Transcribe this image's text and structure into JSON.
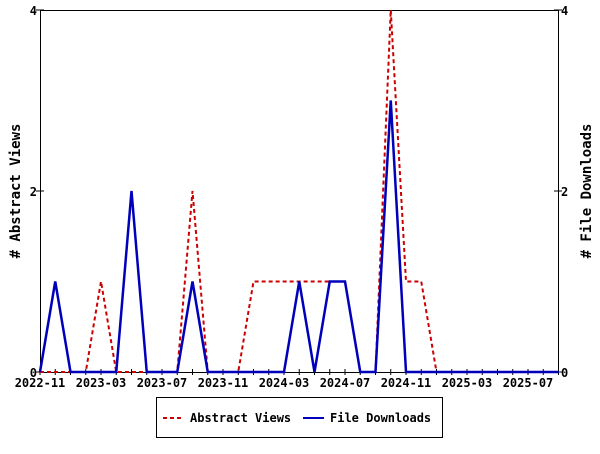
{
  "chart_data": {
    "type": "line",
    "title": "",
    "xlabel": "",
    "ylabel": "# Abstract Views",
    "y2label": "# File Downloads",
    "ylim": [
      0,
      4
    ],
    "y2lim": [
      0,
      4
    ],
    "yticks": [
      "0",
      "2",
      "4"
    ],
    "y2ticks": [
      "0",
      "2",
      "4"
    ],
    "x": [
      "2022-11",
      "2022-12",
      "2023-01",
      "2023-02",
      "2023-03",
      "2023-04",
      "2023-05",
      "2023-06",
      "2023-07",
      "2023-08",
      "2023-09",
      "2023-10",
      "2023-11",
      "2023-12",
      "2024-01",
      "2024-02",
      "2024-03",
      "2024-04",
      "2024-05",
      "2024-06",
      "2024-07",
      "2024-08",
      "2024-09",
      "2024-10",
      "2024-11",
      "2024-12",
      "2025-01",
      "2025-02",
      "2025-03",
      "2025-04",
      "2025-05",
      "2025-06",
      "2025-07",
      "2025-08",
      "2025-09"
    ],
    "xticks": [
      "2022-11",
      "2023-03",
      "2023-07",
      "2023-11",
      "2024-03",
      "2024-07",
      "2024-11",
      "2025-03",
      "2025-07"
    ],
    "legend_position": "bottom",
    "series": [
      {
        "name": "Abstract Views",
        "color": "#cc0000",
        "dash": true,
        "axis": "left",
        "values": [
          0,
          0,
          0,
          0,
          1,
          0,
          0,
          0,
          0,
          0,
          2,
          0,
          0,
          0,
          1,
          1,
          1,
          1,
          1,
          1,
          1,
          0,
          0,
          4,
          1,
          1,
          0,
          0,
          0,
          0,
          0,
          0,
          0,
          0,
          0
        ]
      },
      {
        "name": "File Downloads",
        "color": "#0000bb",
        "dash": false,
        "axis": "right",
        "values": [
          0,
          1,
          0,
          0,
          0,
          0,
          2,
          0,
          0,
          0,
          1,
          0,
          0,
          0,
          0,
          0,
          0,
          1,
          0,
          1,
          1,
          0,
          0,
          3,
          0,
          0,
          0,
          0,
          0,
          0,
          0,
          0,
          0,
          0,
          0
        ]
      }
    ]
  }
}
